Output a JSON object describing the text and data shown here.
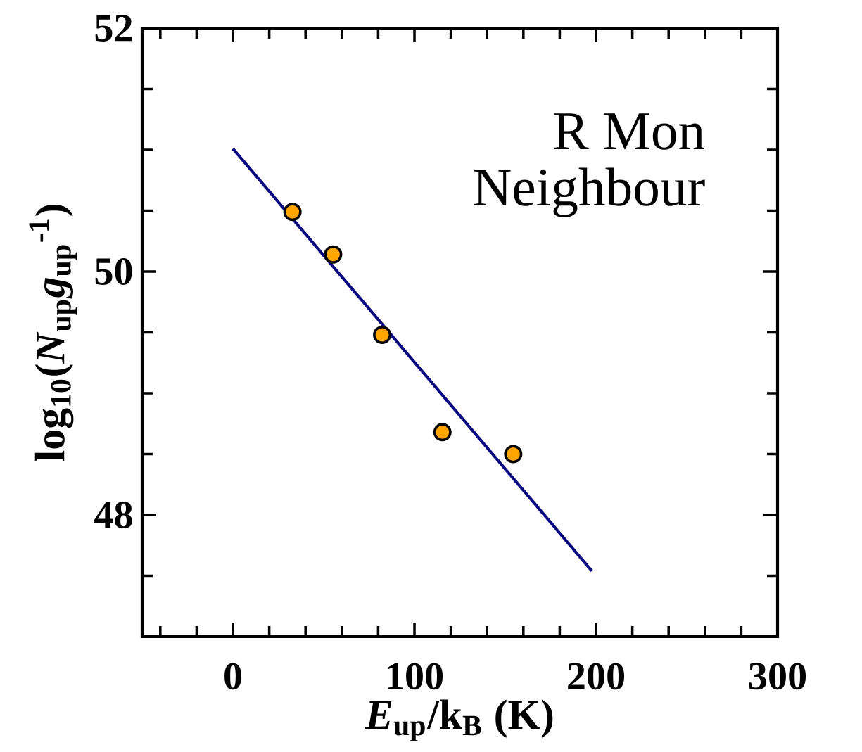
{
  "chart_data": {
    "type": "scatter",
    "xlabel": "*E*$_{up}$/k$_{B}$ (K)",
    "ylabel": "log$_{10}$(*N*$_{up}$*g*$_{up}$$^{-1}$)",
    "annotations": [
      "R Mon",
      "Neighbour"
    ],
    "series": [
      {
        "color": "#ffa500",
        "marker": "circle",
        "x": [
          32.8,
          55.2,
          82.2,
          115.4,
          154.4
        ],
        "values": [
          50.49,
          50.14,
          49.48,
          48.68,
          48.5
        ]
      },
      {
        "type": "line",
        "color": "#0a0a80",
        "marker": "none",
        "line_style": "solid",
        "x": [
          0,
          197.7
        ],
        "values": [
          51.01,
          47.54
        ]
      }
    ],
    "xlim": [
      -50,
      300
    ],
    "ylim": [
      47,
      52
    ],
    "xticks": [
      {
        "value": -40,
        "label": null
      },
      {
        "value": -20,
        "label": null
      },
      0,
      {
        "value": 20,
        "label": null
      },
      {
        "value": 40,
        "label": null
      },
      {
        "value": 60,
        "label": null
      },
      {
        "value": 80,
        "label": null
      },
      100,
      {
        "value": 120,
        "label": null
      },
      {
        "value": 140,
        "label": null
      },
      {
        "value": 160,
        "label": null
      },
      {
        "value": 180,
        "label": null
      },
      200,
      {
        "value": 220,
        "label": null
      },
      {
        "value": 240,
        "label": null
      },
      {
        "value": 260,
        "label": null
      },
      {
        "value": 280,
        "label": null
      },
      300
    ],
    "yticks": [
      {
        "value": 47.5,
        "label": null
      },
      48,
      {
        "value": 48.5,
        "label": null
      },
      {
        "value": 49,
        "label": null
      },
      {
        "value": 49.5,
        "label": null
      },
      50,
      {
        "value": 50.5,
        "label": null
      },
      {
        "value": 51,
        "label": null
      },
      {
        "value": 51.5,
        "label": null
      },
      52
    ],
    "tick_labels": true
  }
}
